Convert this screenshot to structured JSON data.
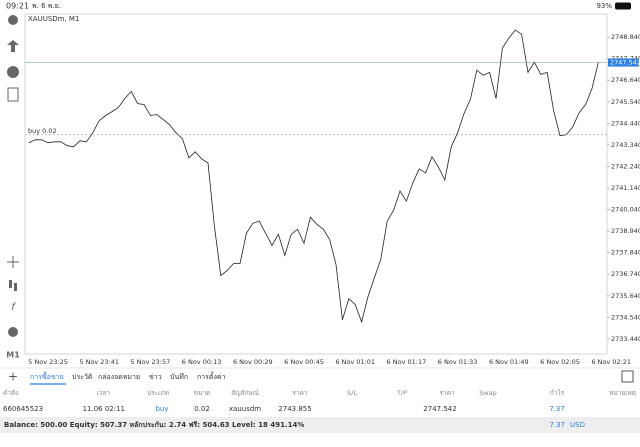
{
  "status_bar": {
    "time": "09:21",
    "date": "พ. 6 พ.ย.",
    "battery": "93%"
  },
  "toolbar": {
    "timeframe": "M1"
  },
  "chart_data": {
    "type": "line",
    "symbol": "XAUUSDm, M1",
    "color": "#222222",
    "categories": [
      null,
      null,
      null,
      "5 Nov 23:25",
      null,
      null,
      null,
      null,
      null,
      null,
      null,
      "5 Nov 23:41",
      null,
      null,
      null,
      null,
      null,
      null,
      null,
      "5 Nov 23:57",
      null,
      null,
      null,
      null,
      null,
      null,
      null,
      "6 Nov 00:13",
      null,
      null,
      null,
      null,
      null,
      null,
      null,
      "6 Nov 00:29",
      null,
      null,
      null,
      null,
      null,
      null,
      null,
      "6 Nov 00:45",
      null,
      null,
      null,
      null,
      null,
      null,
      null,
      "6 Nov 01:01",
      null,
      null,
      null,
      null,
      null,
      null,
      null,
      "6 Nov 01:17",
      null,
      null,
      null,
      null,
      null,
      null,
      null,
      "6 Nov 01:33",
      null,
      null,
      null,
      null,
      null,
      null,
      null,
      "6 Nov 01:49",
      null,
      null,
      null,
      null,
      null,
      null,
      null,
      "6 Nov 02:05",
      null,
      null,
      null,
      null,
      null,
      null,
      null,
      "6 Nov 02:21"
    ],
    "values": [
      2743.45,
      2743.6,
      2743.6,
      2743.45,
      2743.5,
      2743.5,
      2743.3,
      2743.25,
      2743.55,
      2743.5,
      2743.96,
      2744.58,
      2744.84,
      2745.04,
      2745.25,
      2745.71,
      2746.07,
      2745.45,
      2745.4,
      2744.84,
      2744.89,
      2744.63,
      2744.37,
      2743.96,
      2743.66,
      2742.68,
      2742.99,
      2742.63,
      2742.42,
      2739.19,
      2736.67,
      2736.93,
      2737.29,
      2737.29,
      2738.83,
      2739.34,
      2739.45,
      2738.83,
      2738.21,
      2738.78,
      2737.7,
      2738.78,
      2739.04,
      2738.32,
      2739.65,
      2739.29,
      2739.04,
      2738.52,
      2737.24,
      2734.42,
      2735.49,
      2735.19,
      2734.31,
      2735.6,
      2736.57,
      2737.5,
      2739.45,
      2740.01,
      2740.99,
      2740.47,
      2741.4,
      2742.12,
      2741.91,
      2742.73,
      2742.22,
      2741.55,
      2743.24,
      2743.96,
      2744.94,
      2745.66,
      2747.15,
      2746.89,
      2747.04,
      2745.71,
      2748.28,
      2748.79,
      2749.2,
      2748.99,
      2747.04,
      2747.56,
      2746.94,
      2747.04,
      2745.09,
      2743.81,
      2743.86,
      2744.27,
      2744.99,
      2745.4,
      2746.22,
      2747.56,
      null,
      null
    ],
    "ylim": [
      2732.67,
      2750.02
    ],
    "yticks": [
      {
        "value": 2733.44,
        "label": "2733.440"
      },
      {
        "value": 2734.54,
        "label": "2734.540"
      },
      {
        "value": 2735.64,
        "label": "2735.640"
      },
      {
        "value": 2736.74,
        "label": "2736.740"
      },
      {
        "value": 2737.84,
        "label": "2737.840"
      },
      {
        "value": 2738.94,
        "label": "2738.940"
      },
      {
        "value": 2740.04,
        "label": "2740.040"
      },
      {
        "value": 2741.14,
        "label": "2741.140"
      },
      {
        "value": 2742.24,
        "label": "2742.240"
      },
      {
        "value": 2743.34,
        "label": "2743.340"
      },
      {
        "value": 2744.44,
        "label": "2744.440"
      },
      {
        "value": 2745.54,
        "label": "2745.540"
      },
      {
        "value": 2746.64,
        "label": "2746.640"
      },
      {
        "value": 2747.74,
        "label": "2747.740"
      },
      {
        "value": 2748.84,
        "label": "2748.840"
      }
    ],
    "grid": false,
    "current_price": 2747.542,
    "order_line": {
      "label": "buy 0.02",
      "price": 2743.855
    }
  },
  "tabs": [
    "การซื้อขาย",
    "ประวัติ",
    "กล่องจดหมาย",
    "ข่าว",
    "บันทึก",
    "การตั้งค่า"
  ],
  "table": {
    "header": [
      "คำสั่ง",
      "เวลา",
      "ประเภท",
      "ขนาด",
      "สัญลักษณ์",
      "ราคา",
      "S/L",
      "T/P",
      "ราคา",
      "Swap",
      "กำไร",
      "หมายเหตุ"
    ],
    "row": {
      "order": "660645523",
      "time": "11.06 02:11",
      "type": "buy",
      "volume": "0.02",
      "symbol": "xauusdm",
      "profit": "7.37"
    }
  },
  "account": {
    "summary": "Balance: 500.00 Equity: 507.37 หลักประกัน: 2.74 ฟรี: 504.63 Level: 18 491.14%",
    "currency": "USD"
  }
}
